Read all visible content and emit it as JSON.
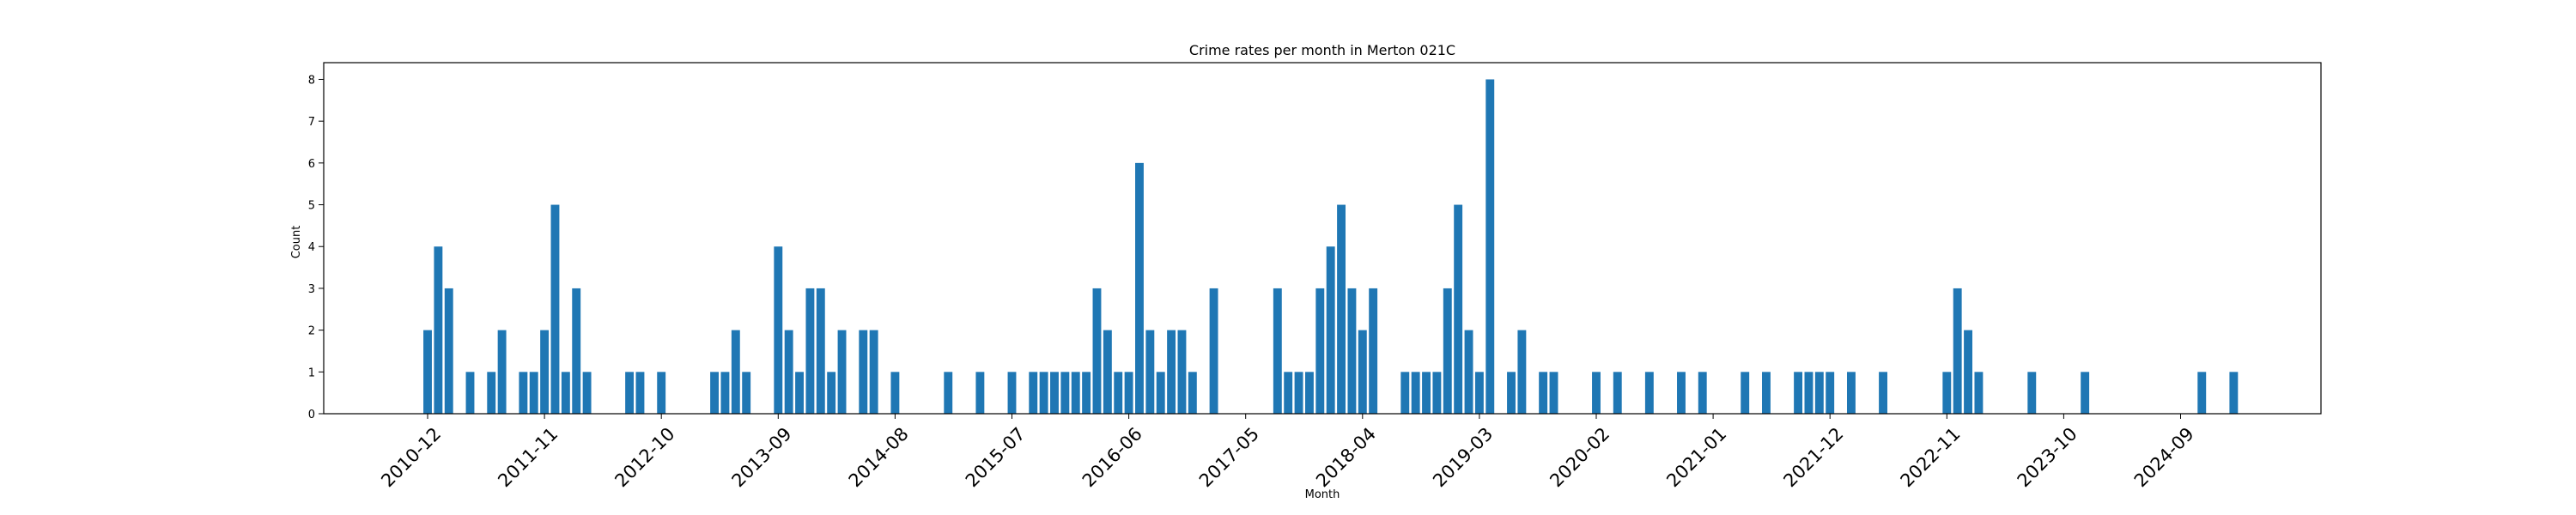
{
  "chart_data": {
    "type": "bar",
    "title": "Crime rates per month in Merton 021C",
    "xlabel": "Month",
    "ylabel": "Count",
    "ylim": [
      0,
      8.4
    ],
    "yticks": [
      0,
      1,
      2,
      3,
      4,
      5,
      6,
      7,
      8
    ],
    "xticks": [
      "2010-12",
      "2011-11",
      "2012-10",
      "2013-09",
      "2014-08",
      "2015-07",
      "2016-06",
      "2017-05",
      "2018-04",
      "2019-03",
      "2020-02",
      "2021-01",
      "2021-12",
      "2022-11",
      "2023-10",
      "2024-09"
    ],
    "grid": false,
    "bar_color": "#1f77b4",
    "categories": [
      "2010-12",
      "2011-01",
      "2011-02",
      "2011-04",
      "2011-06",
      "2011-07",
      "2011-09",
      "2011-10",
      "2011-11",
      "2011-12",
      "2012-01",
      "2012-02",
      "2012-03",
      "2012-07",
      "2012-08",
      "2012-10",
      "2013-03",
      "2013-04",
      "2013-05",
      "2013-06",
      "2013-09",
      "2013-10",
      "2013-11",
      "2013-12",
      "2014-01",
      "2014-02",
      "2014-03",
      "2014-05",
      "2014-06",
      "2014-08",
      "2015-01",
      "2015-04",
      "2015-07",
      "2015-09",
      "2015-10",
      "2015-11",
      "2015-12",
      "2016-01",
      "2016-02",
      "2016-03",
      "2016-04",
      "2016-05",
      "2016-06",
      "2016-07",
      "2016-08",
      "2016-09",
      "2016-10",
      "2016-11",
      "2016-12",
      "2017-02",
      "2017-08",
      "2017-09",
      "2017-10",
      "2017-11",
      "2017-12",
      "2018-01",
      "2018-02",
      "2018-03",
      "2018-04",
      "2018-05",
      "2018-08",
      "2018-09",
      "2018-10",
      "2018-11",
      "2018-12",
      "2019-01",
      "2019-02",
      "2019-03",
      "2019-04",
      "2019-06",
      "2019-07",
      "2019-09",
      "2019-10",
      "2020-02",
      "2020-04",
      "2020-07",
      "2020-10",
      "2020-12",
      "2021-04",
      "2021-06",
      "2021-09",
      "2021-10",
      "2021-11",
      "2021-12",
      "2022-02",
      "2022-05",
      "2022-11",
      "2022-12",
      "2023-01",
      "2023-02",
      "2023-07",
      "2023-12",
      "2024-11",
      "2025-02"
    ],
    "values": [
      2,
      4,
      3,
      1,
      1,
      2,
      1,
      1,
      2,
      5,
      1,
      3,
      1,
      1,
      1,
      1,
      1,
      1,
      2,
      1,
      4,
      2,
      1,
      3,
      3,
      1,
      2,
      2,
      2,
      1,
      1,
      1,
      1,
      1,
      1,
      1,
      1,
      1,
      1,
      3,
      2,
      1,
      1,
      6,
      2,
      1,
      2,
      2,
      1,
      3,
      3,
      1,
      1,
      1,
      3,
      4,
      5,
      3,
      2,
      3,
      1,
      1,
      1,
      1,
      3,
      5,
      2,
      1,
      8,
      1,
      2,
      1,
      1,
      1,
      1,
      1,
      1,
      1,
      1,
      1,
      1,
      1,
      1,
      1,
      1,
      1,
      1,
      3,
      2,
      1,
      1,
      1,
      1,
      1
    ]
  }
}
